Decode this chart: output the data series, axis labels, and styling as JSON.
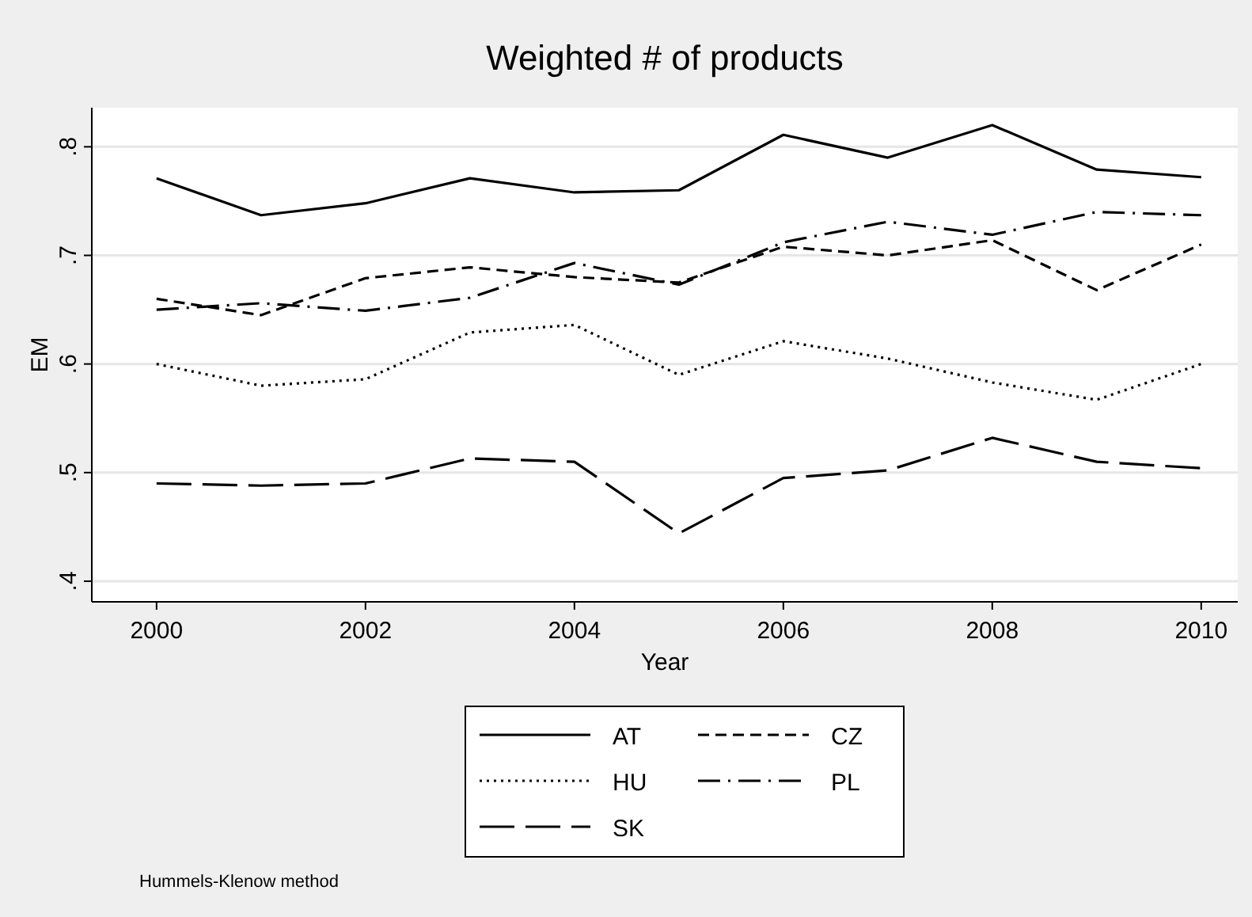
{
  "chart_data": {
    "type": "line",
    "title": "Weighted # of products",
    "xlabel": "Year",
    "ylabel": "EM",
    "annotations": [
      "Hummels-Klenow method"
    ],
    "x": [
      2000,
      2001,
      2002,
      2003,
      2004,
      2005,
      2006,
      2007,
      2008,
      2009,
      2010
    ],
    "series": [
      {
        "name": "AT",
        "color": "#000000",
        "line_style": "solid",
        "values": [
          0.771,
          0.737,
          0.748,
          0.771,
          0.758,
          0.76,
          0.811,
          0.79,
          0.82,
          0.779,
          0.772
        ]
      },
      {
        "name": "CZ",
        "color": "#000000",
        "line_style": "dashed",
        "values": [
          0.66,
          0.645,
          0.679,
          0.689,
          0.68,
          0.675,
          0.708,
          0.7,
          0.714,
          0.668,
          0.71
        ]
      },
      {
        "name": "HU",
        "color": "#000000",
        "line_style": "dotted",
        "values": [
          0.6,
          0.58,
          0.586,
          0.629,
          0.636,
          0.59,
          0.621,
          0.605,
          0.583,
          0.567,
          0.6
        ]
      },
      {
        "name": "PL",
        "color": "#000000",
        "line_style": "dashdot",
        "values": [
          0.65,
          0.656,
          0.649,
          0.661,
          0.693,
          0.673,
          0.712,
          0.731,
          0.719,
          0.74,
          0.737
        ]
      },
      {
        "name": "SK",
        "color": "#000000",
        "line_style": "longdash",
        "values": [
          0.49,
          0.488,
          0.49,
          0.513,
          0.51,
          0.444,
          0.495,
          0.502,
          0.532,
          0.51,
          0.504
        ]
      }
    ],
    "xlim": [
      1999.38,
      2010.35
    ],
    "xticks": [
      2000,
      2002,
      2004,
      2006,
      2008,
      2010
    ],
    "ylim": [
      0.381,
      0.836
    ],
    "yticks": [
      {
        "value": 0.4,
        "label": ".4"
      },
      {
        "value": 0.5,
        "label": ".5"
      },
      {
        "value": 0.6,
        "label": ".6"
      },
      {
        "value": 0.7,
        "label": ".7"
      },
      {
        "value": 0.8,
        "label": ".8"
      }
    ],
    "grid": "y",
    "legend": "bottom",
    "marker": "none"
  }
}
